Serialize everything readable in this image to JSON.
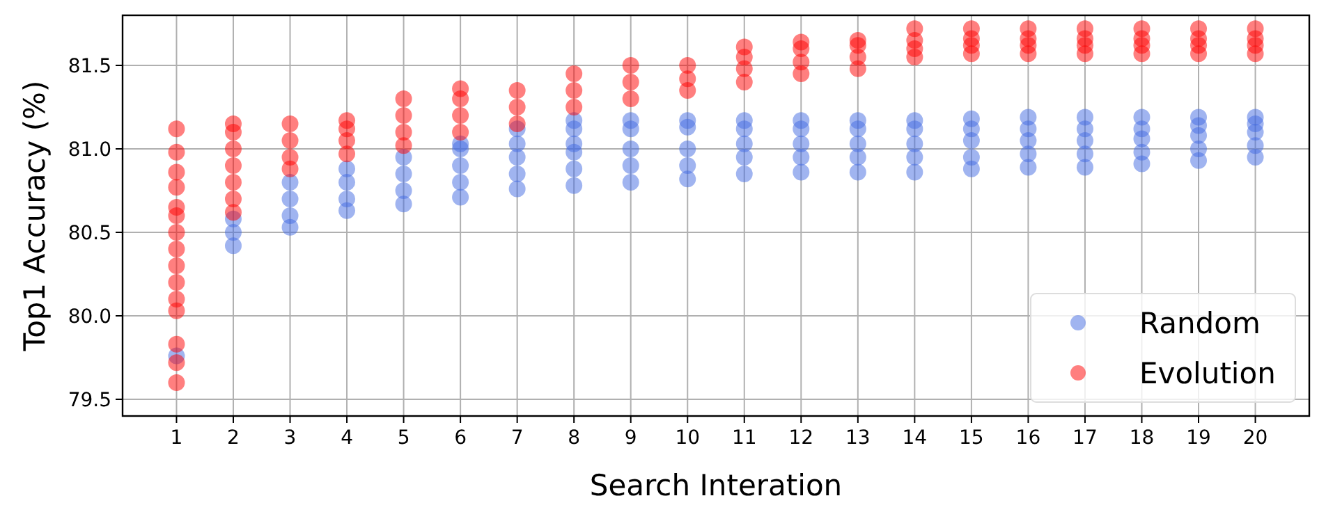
{
  "chart_data": {
    "type": "scatter",
    "xlabel": "Search Interation",
    "ylabel": "Top1 Accuracy (%)",
    "xlim": [
      0.05,
      20.95
    ],
    "xticks": [
      1,
      2,
      3,
      4,
      5,
      6,
      7,
      8,
      9,
      10,
      11,
      12,
      13,
      14,
      15,
      16,
      17,
      18,
      19,
      20
    ],
    "ylim": [
      79.4,
      81.8
    ],
    "yticks": [
      {
        "value": 79.5,
        "label": "79.5"
      },
      {
        "value": 80,
        "label": "80.0"
      },
      {
        "value": 80.5,
        "label": "80.5"
      },
      {
        "value": 81,
        "label": "81.0"
      },
      {
        "value": 81.5,
        "label": "81.5"
      }
    ],
    "grid": true,
    "legend": "bottom right",
    "marker": "circle",
    "series": [
      {
        "name": "Random",
        "color": "#4169e1",
        "x": [
          1,
          2,
          2,
          2,
          3,
          3,
          3,
          3,
          4,
          4,
          4,
          4,
          5,
          5,
          5,
          5,
          6,
          6,
          6,
          6,
          6,
          7,
          7,
          7,
          7,
          7,
          8,
          8,
          8,
          8,
          8,
          8,
          9,
          9,
          9,
          9,
          9,
          10,
          10,
          10,
          10,
          10,
          11,
          11,
          11,
          11,
          11,
          12,
          12,
          12,
          12,
          12,
          13,
          13,
          13,
          13,
          13,
          14,
          14,
          14,
          14,
          14,
          15,
          15,
          15,
          15,
          15,
          16,
          16,
          16,
          16,
          16,
          17,
          17,
          17,
          17,
          17,
          18,
          18,
          18,
          18,
          18,
          19,
          19,
          19,
          19,
          19,
          20,
          20,
          20,
          20,
          20
        ],
        "values": [
          79.76,
          80.42,
          80.5,
          80.58,
          80.53,
          80.6,
          80.7,
          80.8,
          80.63,
          80.7,
          80.8,
          80.88,
          80.67,
          80.75,
          80.85,
          80.95,
          80.71,
          80.8,
          80.9,
          81.0,
          81.03,
          80.76,
          80.85,
          80.95,
          81.03,
          81.12,
          80.78,
          80.88,
          80.98,
          81.03,
          81.12,
          81.17,
          80.8,
          80.9,
          81.0,
          81.12,
          81.17,
          80.82,
          80.9,
          81.0,
          81.13,
          81.17,
          80.85,
          80.95,
          81.03,
          81.12,
          81.17,
          80.86,
          80.95,
          81.03,
          81.12,
          81.17,
          80.86,
          80.95,
          81.03,
          81.12,
          81.17,
          80.86,
          80.95,
          81.03,
          81.12,
          81.17,
          80.88,
          80.95,
          81.05,
          81.12,
          81.18,
          80.89,
          80.97,
          81.05,
          81.12,
          81.19,
          80.89,
          80.97,
          81.05,
          81.12,
          81.19,
          80.91,
          80.98,
          81.06,
          81.12,
          81.19,
          80.93,
          81.0,
          81.08,
          81.14,
          81.19,
          80.95,
          81.02,
          81.1,
          81.15,
          81.19
        ]
      },
      {
        "name": "Evolution",
        "color": "#ff0000",
        "x": [
          1,
          1,
          1,
          1,
          1,
          1,
          1,
          1,
          1,
          1,
          1,
          1,
          1,
          1,
          1,
          2,
          2,
          2,
          2,
          2,
          2,
          2,
          3,
          3,
          3,
          3,
          4,
          4,
          4,
          4,
          5,
          5,
          5,
          5,
          6,
          6,
          6,
          6,
          7,
          7,
          7,
          8,
          8,
          8,
          9,
          9,
          9,
          10,
          10,
          10,
          11,
          11,
          11,
          11,
          12,
          12,
          12,
          12,
          13,
          13,
          13,
          13,
          14,
          14,
          14,
          14,
          15,
          15,
          15,
          15,
          16,
          16,
          16,
          16,
          17,
          17,
          17,
          17,
          18,
          18,
          18,
          18,
          19,
          19,
          19,
          19,
          20,
          20,
          20,
          20
        ],
        "values": [
          79.6,
          79.72,
          79.83,
          80.03,
          80.1,
          80.2,
          80.3,
          80.4,
          80.5,
          80.6,
          80.65,
          80.77,
          80.86,
          80.98,
          81.12,
          80.62,
          80.7,
          80.8,
          80.9,
          81.0,
          81.1,
          81.15,
          80.88,
          80.95,
          81.05,
          81.15,
          80.97,
          81.05,
          81.12,
          81.17,
          81.02,
          81.1,
          81.2,
          81.3,
          81.1,
          81.2,
          81.3,
          81.36,
          81.15,
          81.25,
          81.35,
          81.25,
          81.35,
          81.45,
          81.3,
          81.4,
          81.5,
          81.35,
          81.42,
          81.5,
          81.4,
          81.48,
          81.55,
          81.61,
          81.45,
          81.52,
          81.6,
          81.64,
          81.48,
          81.55,
          81.62,
          81.65,
          81.55,
          81.6,
          81.65,
          81.72,
          81.57,
          81.62,
          81.66,
          81.72,
          81.57,
          81.62,
          81.66,
          81.72,
          81.57,
          81.62,
          81.66,
          81.72,
          81.57,
          81.62,
          81.66,
          81.72,
          81.57,
          81.62,
          81.66,
          81.72,
          81.57,
          81.62,
          81.66,
          81.72
        ]
      }
    ]
  }
}
